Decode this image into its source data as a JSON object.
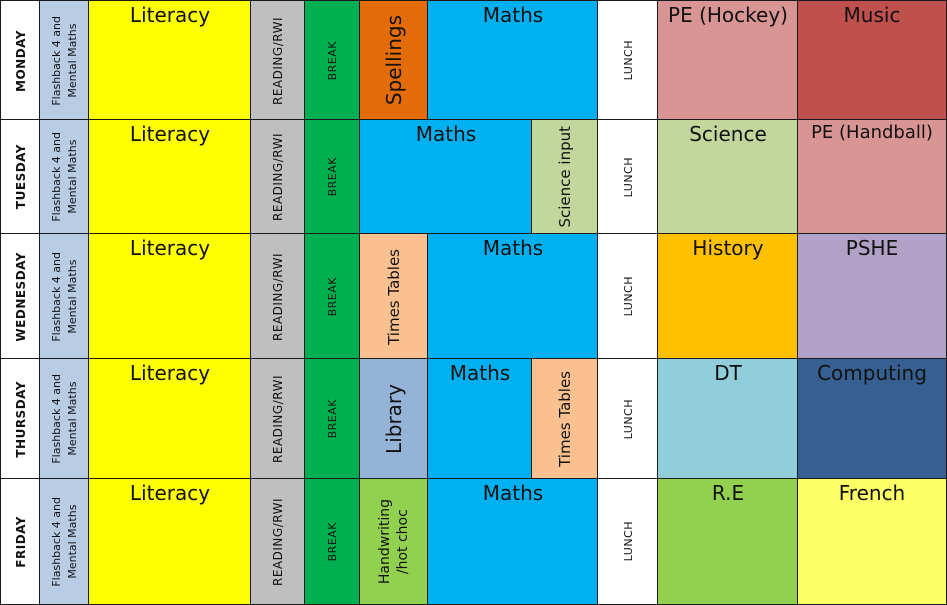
{
  "colors": {
    "day": "#ffffff",
    "flashback": "#b8cce4",
    "literacy": "#ffff00",
    "reading": "#bfbfbf",
    "break": "#00b050",
    "spellings": "#e36c09",
    "maths": "#00b0f0",
    "lunch": "#ffffff",
    "pe_hockey": "#d99594",
    "music": "#c0504d",
    "science": "#c3d69b",
    "pe_handball": "#d99594",
    "times_tables": "#fac090",
    "history": "#ffc000",
    "pshe": "#b2a1c7",
    "library": "#95b3d7",
    "dt": "#92cddc",
    "computing": "#366092",
    "handwriting": "#92d050",
    "re": "#92d050",
    "french": "#ffff66"
  },
  "days": {
    "monday": {
      "day": "MONDAY",
      "flashback": "Flashback 4 and\nMental Maths",
      "literacy": "Literacy",
      "reading": "READING/RWI",
      "break": "BREAK",
      "spellings": "Spellings",
      "maths": "Maths",
      "lunch": "LUNCH",
      "pm1": "PE (Hockey)",
      "pm2": "Music"
    },
    "tuesday": {
      "day": "TUESDAY",
      "flashback": "Flashback 4 and\nMental Maths",
      "literacy": "Literacy",
      "reading": "READING/RWI",
      "break": "BREAK",
      "maths": "Maths",
      "science_input": "Science input",
      "lunch": "LUNCH",
      "pm1": "Science",
      "pm2": "PE (Handball)"
    },
    "wednesday": {
      "day": "WEDNESDAY",
      "flashback": "Flashback 4 and\nMental Maths",
      "literacy": "Literacy",
      "reading": "READING/RWI",
      "break": "BREAK",
      "times_tables": "Times Tables",
      "maths": "Maths",
      "lunch": "LUNCH",
      "pm1": "History",
      "pm2": "PSHE"
    },
    "thursday": {
      "day": "THURSDAY",
      "flashback": "Flashback 4 and\nMental Maths",
      "literacy": "Literacy",
      "reading": "READING/RWI",
      "break": "BREAK",
      "library": "Library",
      "maths": "Maths",
      "times_tables": "Times Tables",
      "lunch": "LUNCH",
      "pm1": "DT",
      "pm2": "Computing"
    },
    "friday": {
      "day": "FRIDAY",
      "flashback": "Flashback 4 and\nMental Maths",
      "literacy": "Literacy",
      "reading": "READING/RWI",
      "break": "BREAK",
      "handwriting": "Handwriting\n/hot choc",
      "maths": "Maths",
      "lunch": "LUNCH",
      "pm1": "R.E",
      "pm2": "French"
    }
  }
}
